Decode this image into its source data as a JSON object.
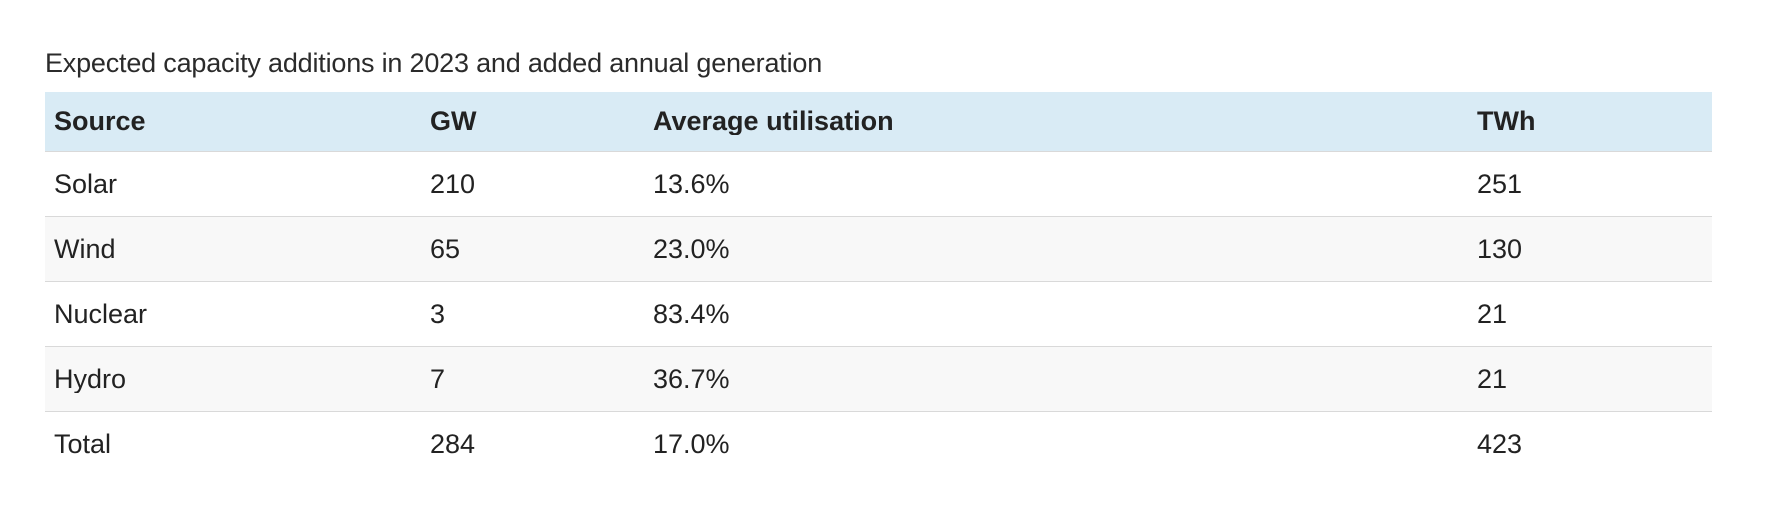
{
  "title": "Expected capacity additions in 2023 and added annual generation",
  "table": {
    "columns": [
      "Source",
      "GW",
      "Average utilisation",
      "TWh"
    ],
    "rows": [
      {
        "source": "Solar",
        "gw": "210",
        "utilisation": "13.6%",
        "twh": "251"
      },
      {
        "source": "Wind",
        "gw": "65",
        "utilisation": "23.0%",
        "twh": "130"
      },
      {
        "source": "Nuclear",
        "gw": "3",
        "utilisation": "83.4%",
        "twh": "21"
      },
      {
        "source": "Hydro",
        "gw": "7",
        "utilisation": "36.7%",
        "twh": "21"
      },
      {
        "source": "Total",
        "gw": "284",
        "utilisation": "17.0%",
        "twh": "423"
      }
    ]
  },
  "colors": {
    "header_bg": "#d9ebf5",
    "row_alt_bg": "#f8f8f8",
    "divider": "#d9d9d9",
    "text": "#222222"
  },
  "chart_data": {
    "type": "table",
    "title": "Expected capacity additions in 2023 and added annual generation",
    "columns": [
      "Source",
      "GW",
      "Average utilisation",
      "TWh"
    ],
    "rows": [
      [
        "Solar",
        210,
        "13.6%",
        251
      ],
      [
        "Wind",
        65,
        "23.0%",
        130
      ],
      [
        "Nuclear",
        3,
        "83.4%",
        21
      ],
      [
        "Hydro",
        7,
        "36.7%",
        21
      ],
      [
        "Total",
        284,
        "17.0%",
        423
      ]
    ]
  }
}
